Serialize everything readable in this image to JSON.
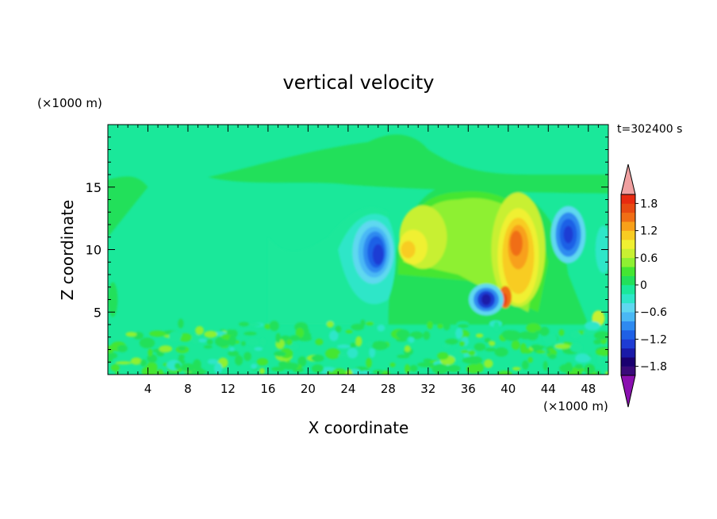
{
  "chart_data": {
    "type": "heatmap",
    "title": "vertical velocity",
    "xlabel": "X coordinate",
    "ylabel": "Z coordinate",
    "x_unit": "(×1000 m)",
    "y_unit": "(×1000 m)",
    "time_label": "t=302400 s",
    "xlim": [
      0,
      50
    ],
    "ylim": [
      0,
      20
    ],
    "x_ticks": [
      4,
      8,
      12,
      16,
      20,
      24,
      28,
      32,
      36,
      40,
      44,
      48
    ],
    "y_ticks": [
      5,
      10,
      15
    ],
    "colorbar": {
      "levels": [
        -2.0,
        -1.8,
        -1.6,
        -1.4,
        -1.2,
        -1.0,
        -0.8,
        -0.6,
        -0.4,
        -0.2,
        0,
        0.2,
        0.4,
        0.6,
        0.8,
        1.0,
        1.2,
        1.4,
        1.6,
        1.8,
        2.0
      ],
      "tick_labels": [
        "1.8",
        "1.2",
        "0.6",
        "0",
        "−0.6",
        "−1.2",
        "−1.8"
      ],
      "tick_values": [
        1.8,
        1.2,
        0.6,
        0,
        -0.6,
        -1.2,
        -1.8
      ],
      "colors": [
        "#3a0a7a",
        "#1a0070",
        "#1a1aa8",
        "#1e3cd4",
        "#1e60e6",
        "#2e8af0",
        "#4ab8f5",
        "#5fd8f0",
        "#2ee6c8",
        "#1ae89a",
        "#22e05a",
        "#44e632",
        "#8ef032",
        "#c8f032",
        "#f0f032",
        "#f8cc22",
        "#f8a01a",
        "#f06e16",
        "#e84a12",
        "#e82a10"
      ],
      "extend_low_color": "#8a10b0",
      "extend_high_color": "#f0a0a0"
    },
    "features": [
      {
        "kind": "downdraft",
        "x": 27,
        "z": 9.8,
        "value": -1.3
      },
      {
        "kind": "downdraft",
        "x": 37.8,
        "z": 6.0,
        "value": -1.5
      },
      {
        "kind": "downdraft",
        "x": 46.0,
        "z": 11.2,
        "value": -1.3
      },
      {
        "kind": "updraft",
        "x": 30.0,
        "z": 10.2,
        "value": 1.0
      },
      {
        "kind": "updraft",
        "x": 40.8,
        "z": 10.0,
        "value": 1.5
      },
      {
        "kind": "updraft",
        "x": 39.6,
        "z": 6.0,
        "value": 1.6
      }
    ]
  }
}
